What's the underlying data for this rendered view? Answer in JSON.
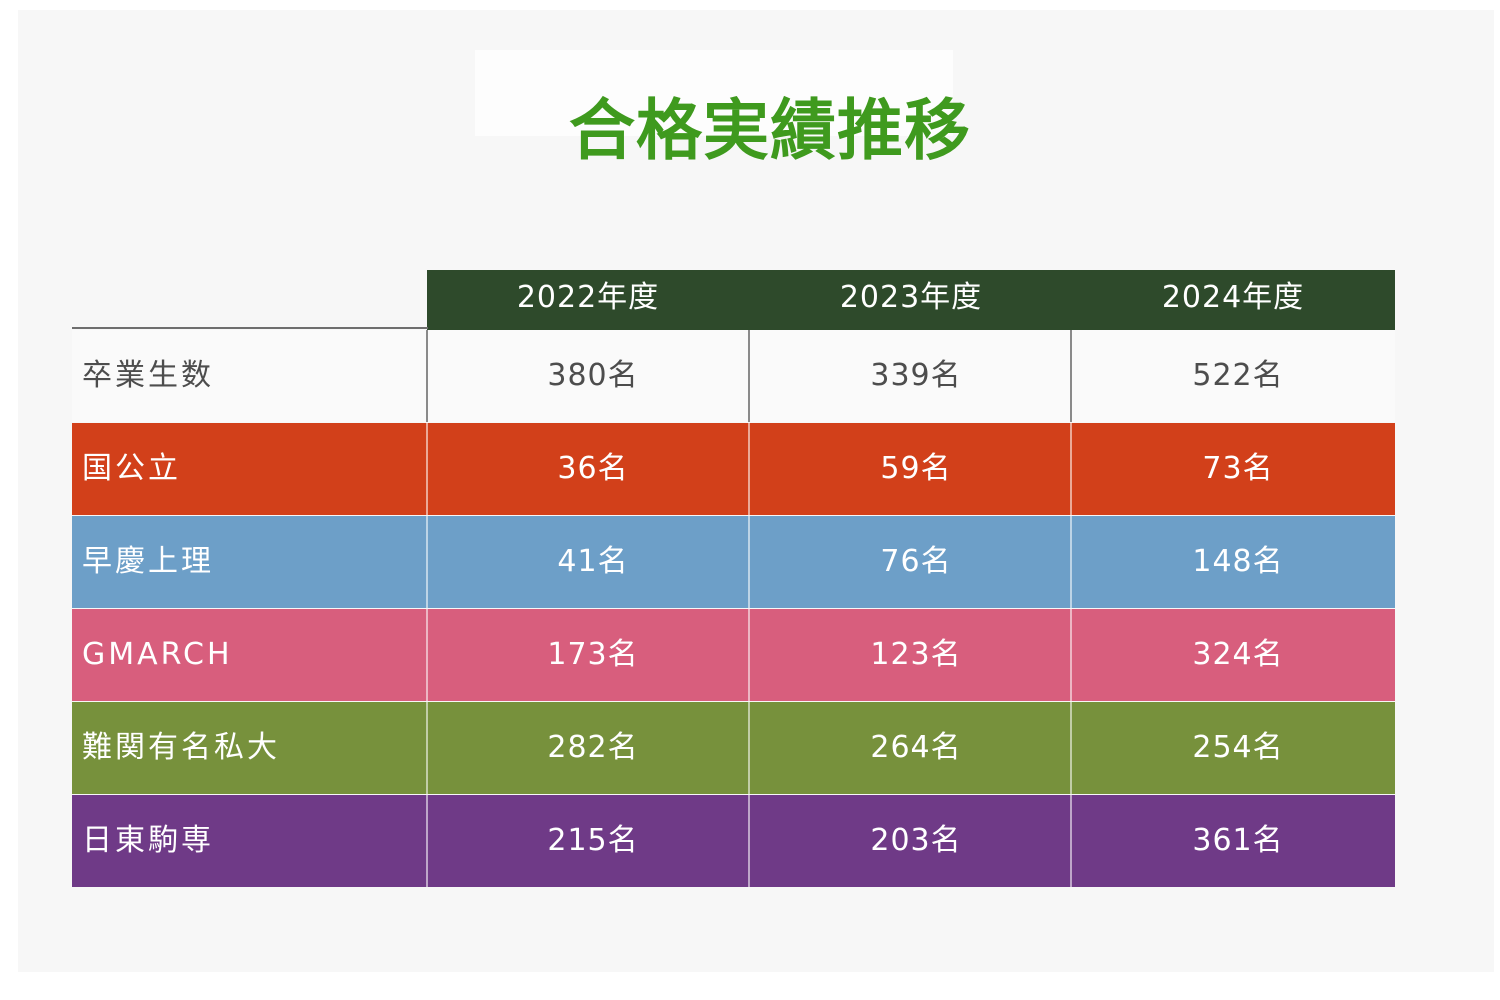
{
  "title": "合格実績推移",
  "colors": {
    "title": "#3f9a1e",
    "header_bg": "#2e4a2b",
    "national_public": "#d2401a",
    "waseda_keio_sophia_tus": "#6d9fc8",
    "gmarch": "#d85e7d",
    "difficult_private": "#77913c",
    "nittoukomasen": "#6f3a87"
  },
  "chart_data": {
    "type": "table",
    "columns": [
      "2022年度",
      "2023年度",
      "2024年度"
    ],
    "rows": [
      {
        "label": "卒業生数",
        "values": [
          "380名",
          "339名",
          "522名"
        ],
        "color": "#fafafa"
      },
      {
        "label": "国公立",
        "values": [
          "36名",
          "59名",
          "73名"
        ],
        "color": "#d2401a"
      },
      {
        "label": "早慶上理",
        "values": [
          "41名",
          "76名",
          "148名"
        ],
        "color": "#6d9fc8"
      },
      {
        "label": "GMARCH",
        "values": [
          "173名",
          "123名",
          "324名"
        ],
        "color": "#d85e7d"
      },
      {
        "label": "難関有名私大",
        "values": [
          "282名",
          "264名",
          "254名"
        ],
        "color": "#77913c"
      },
      {
        "label": "日東駒専",
        "values": [
          "215名",
          "203名",
          "361名"
        ],
        "color": "#6f3a87"
      }
    ]
  }
}
